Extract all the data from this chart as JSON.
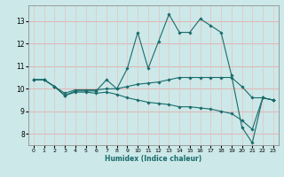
{
  "xlabel": "Humidex (Indice chaleur)",
  "bg_color": "#cce8e8",
  "line_color": "#1a6b6b",
  "grid_color_h": "#e8a0a0",
  "grid_color_v": "#e8c0c0",
  "xlim": [
    -0.5,
    23.5
  ],
  "ylim": [
    7.5,
    13.7
  ],
  "xticks": [
    0,
    1,
    2,
    3,
    4,
    5,
    6,
    7,
    8,
    9,
    10,
    11,
    12,
    13,
    14,
    15,
    16,
    17,
    18,
    19,
    20,
    21,
    22,
    23
  ],
  "yticks": [
    8,
    9,
    10,
    11,
    12,
    13
  ],
  "lines": [
    {
      "x": [
        0,
        1,
        2,
        3,
        4,
        5,
        6,
        7,
        8,
        9,
        10,
        11,
        12,
        13,
        14,
        15,
        16,
        17,
        18,
        19,
        20,
        21,
        22,
        23
      ],
      "y": [
        10.4,
        10.4,
        10.1,
        9.7,
        9.9,
        9.9,
        9.9,
        10.4,
        10.0,
        10.9,
        12.5,
        10.9,
        12.1,
        13.3,
        12.5,
        12.5,
        13.1,
        12.8,
        12.5,
        10.6,
        8.3,
        7.6,
        9.6,
        9.5
      ]
    },
    {
      "x": [
        0,
        1,
        2,
        3,
        4,
        5,
        6,
        7,
        8,
        9,
        10,
        11,
        12,
        13,
        14,
        15,
        16,
        17,
        18,
        19,
        20,
        21,
        22,
        23
      ],
      "y": [
        10.4,
        10.4,
        10.1,
        9.8,
        9.95,
        9.95,
        9.95,
        10.0,
        10.0,
        10.1,
        10.2,
        10.25,
        10.3,
        10.4,
        10.5,
        10.5,
        10.5,
        10.5,
        10.5,
        10.5,
        10.1,
        9.6,
        9.6,
        9.5
      ]
    },
    {
      "x": [
        0,
        1,
        2,
        3,
        4,
        5,
        6,
        7,
        8,
        9,
        10,
        11,
        12,
        13,
        14,
        15,
        16,
        17,
        18,
        19,
        20,
        21,
        22,
        23
      ],
      "y": [
        10.4,
        10.4,
        10.1,
        9.7,
        9.85,
        9.85,
        9.8,
        9.85,
        9.75,
        9.6,
        9.5,
        9.4,
        9.35,
        9.3,
        9.2,
        9.2,
        9.15,
        9.1,
        9.0,
        8.9,
        8.6,
        8.2,
        9.6,
        9.5
      ]
    }
  ]
}
